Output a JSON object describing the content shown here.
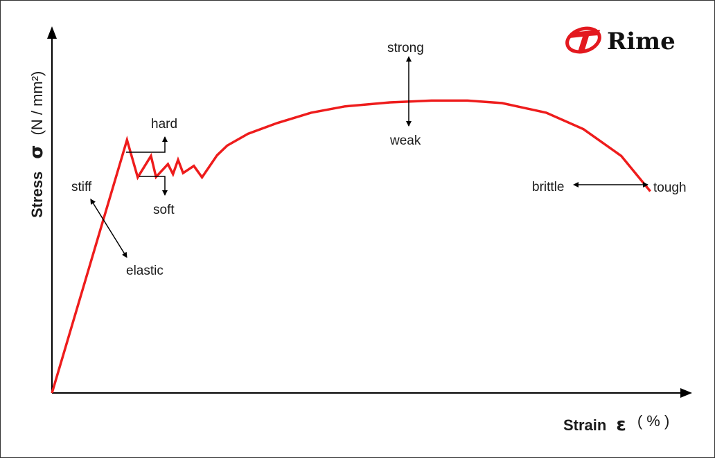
{
  "colors": {
    "curve": "#ee1c1c",
    "axis": "#000000",
    "text": "#1a1a1a",
    "logo_red": "#e3191f"
  },
  "logo": {
    "text": "Rime",
    "icon": "rime-logo-icon"
  },
  "chart_data": {
    "type": "line",
    "title": "",
    "xlabel": "Strain",
    "xlabel_symbol": "ε",
    "xlabel_unit": "( % )",
    "ylabel": "Stress",
    "ylabel_symbol": "σ",
    "ylabel_unit": "(N / mm²)",
    "xlim": [
      0,
      100
    ],
    "ylim": [
      0,
      100
    ],
    "grid": false,
    "legend": "none",
    "series": [
      {
        "values": [
          [
            0,
            0
          ],
          [
            11.9,
            70.9
          ],
          [
            13.6,
            60.4
          ],
          [
            15.7,
            66.4
          ],
          [
            16.5,
            60.5
          ],
          [
            18.4,
            64.1
          ],
          [
            19.2,
            61.3
          ],
          [
            20.0,
            65.3
          ],
          [
            20.8,
            61.6
          ],
          [
            22.5,
            63.6
          ],
          [
            23.8,
            60.4
          ],
          [
            26.2,
            66.6
          ],
          [
            27.8,
            69.3
          ],
          [
            31.1,
            72.6
          ],
          [
            35.7,
            75.6
          ],
          [
            41.1,
            78.5
          ],
          [
            46.5,
            80.3
          ],
          [
            53.6,
            81.4
          ],
          [
            60.2,
            81.9
          ],
          [
            65.9,
            81.9
          ],
          [
            71.4,
            81.2
          ],
          [
            78.4,
            78.5
          ],
          [
            84.3,
            73.9
          ],
          [
            90.3,
            66.4
          ],
          [
            94.9,
            56.5
          ]
        ]
      }
    ],
    "annotations": {
      "stiff": "stiff",
      "elastic": "elastic",
      "hard": "hard",
      "soft": "soft",
      "strong": "strong",
      "weak": "weak",
      "brittle": "brittle",
      "tough": "tough"
    }
  }
}
